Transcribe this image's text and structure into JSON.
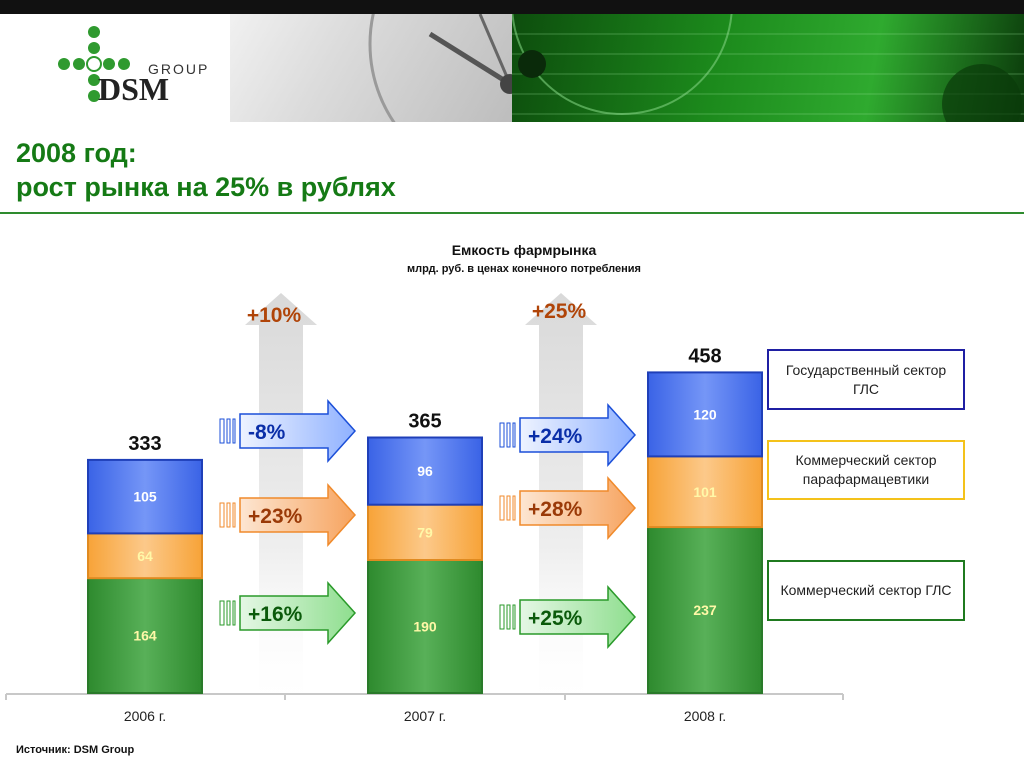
{
  "header": {
    "logo": {
      "name": "DSM",
      "sub": "GROUP",
      "icon": "green-cross-dots-icon"
    }
  },
  "title": {
    "line1": "2008 год:",
    "line2": "рост рынка на 25% в рублях"
  },
  "colors": {
    "title": "#157a15",
    "state": "#5177f0",
    "parapharm": "#f9b04e",
    "commercial": "#3f9a3f",
    "arrow_blue": "#1b4fd8",
    "arrow_orange": "#f08a2b",
    "arrow_green": "#2a9a2a"
  },
  "source": "Источник: DSM Group",
  "chart_data": {
    "type": "bar",
    "stacked": true,
    "title": "Емкость фармрынка",
    "subtitle": "млрд. руб. в ценах конечного потребления",
    "categories": [
      "2006 г.",
      "2007 г.",
      "2008 г."
    ],
    "totals": [
      333,
      365,
      458
    ],
    "series": [
      {
        "key": "commercial",
        "name": "Коммерческий сектор ГЛС",
        "values": [
          164,
          190,
          237
        ],
        "color": "#3f9a3f"
      },
      {
        "key": "parapharm",
        "name": "Коммерческий сектор парафармацевтики",
        "values": [
          64,
          79,
          101
        ],
        "color": "#f9b04e"
      },
      {
        "key": "state",
        "name": "Государственный сектор ГЛС",
        "values": [
          105,
          96,
          120
        ],
        "color": "#5177f0"
      }
    ],
    "growth": [
      {
        "total": "+10%",
        "state": "-8%",
        "parapharm": "+23%",
        "commercial": "+16%"
      },
      {
        "total": "+25%",
        "state": "+24%",
        "parapharm": "+28%",
        "commercial": "+25%"
      }
    ],
    "legend_position": "right"
  }
}
